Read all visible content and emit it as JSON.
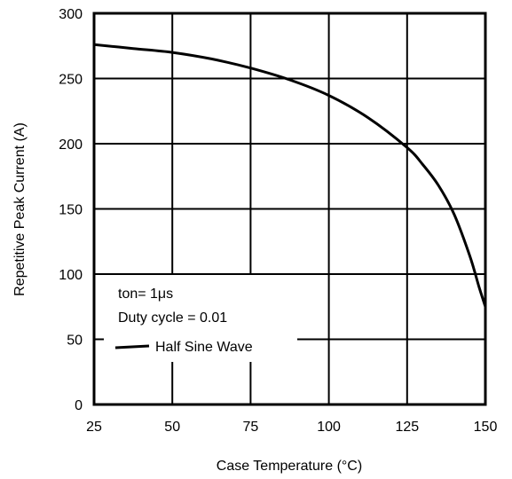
{
  "chart_data": {
    "type": "line",
    "xlabel": "Case Temperature (°C)",
    "ylabel": "Repetitive Peak Current (A)",
    "xlim": [
      25,
      150
    ],
    "ylim": [
      0,
      300
    ],
    "xticks": [
      25,
      50,
      75,
      100,
      125,
      150
    ],
    "yticks": [
      0,
      50,
      100,
      150,
      200,
      250,
      300
    ],
    "grid": true,
    "series": [
      {
        "name": "Half Sine Wave",
        "x": [
          25,
          37.5,
          50,
          62.5,
          75,
          87.5,
          100,
          112.5,
          125,
          130,
          135,
          140,
          145,
          148,
          150
        ],
        "y": [
          276,
          273,
          270,
          265,
          258,
          249,
          237,
          220,
          197,
          184,
          168,
          146,
          114,
          90,
          75
        ]
      }
    ],
    "annotations": [
      "ton= 1μs",
      "Duty cycle = 0.01"
    ]
  },
  "colors": {
    "line": "#000000",
    "grid": "#000000",
    "background": "#ffffff"
  }
}
